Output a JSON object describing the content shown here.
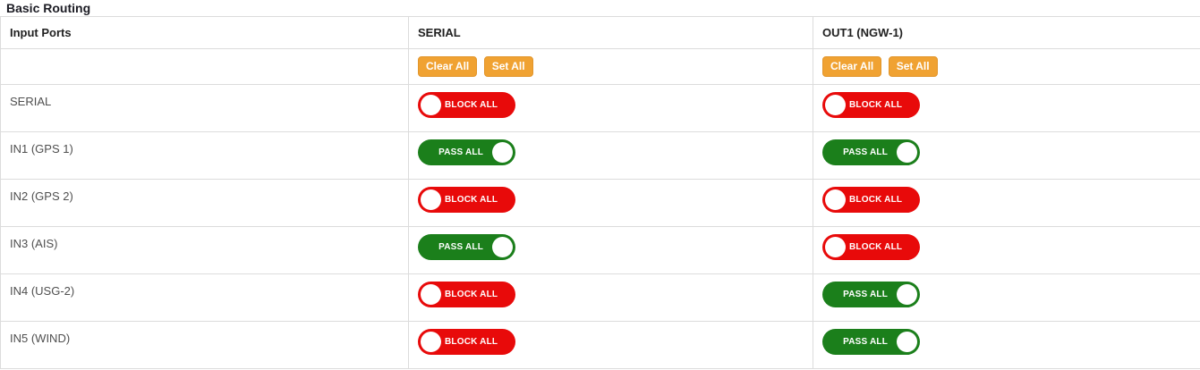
{
  "page": {
    "title": "Basic Routing"
  },
  "table": {
    "columns": [
      {
        "key": "input_ports",
        "label": "Input Ports"
      },
      {
        "key": "serial",
        "label": "SERIAL"
      },
      {
        "key": "out1",
        "label": "OUT1 (NGW-1)"
      }
    ],
    "actions": {
      "clear_all": "Clear All",
      "set_all": "Set All"
    },
    "toggle_labels": {
      "block": "BLOCK ALL",
      "pass": "PASS ALL"
    },
    "colors": {
      "block": "#e80a0a",
      "pass": "#1b7f1b",
      "action_button": "#f0a232",
      "border": "#dcdcdc"
    },
    "rows": [
      {
        "label": "SERIAL",
        "serial": "block",
        "out1": "block"
      },
      {
        "label": "IN1 (GPS 1)",
        "serial": "pass",
        "out1": "pass"
      },
      {
        "label": "IN2 (GPS 2)",
        "serial": "block",
        "out1": "block"
      },
      {
        "label": "IN3 (AIS)",
        "serial": "pass",
        "out1": "block"
      },
      {
        "label": "IN4 (USG-2)",
        "serial": "block",
        "out1": "pass"
      },
      {
        "label": "IN5 (WIND)",
        "serial": "block",
        "out1": "pass"
      }
    ]
  }
}
